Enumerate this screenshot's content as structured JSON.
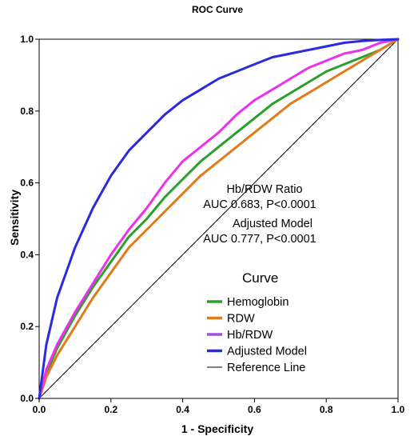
{
  "chart_data": {
    "type": "line",
    "title": "ROC Curve",
    "xlabel": "1 - Specificity",
    "ylabel": "Sensitivity",
    "xlim": [
      0.0,
      1.0
    ],
    "ylim": [
      0.0,
      1.0
    ],
    "xticks": [
      "0.0",
      "0.2",
      "0.4",
      "0.6",
      "0.8",
      "1.0"
    ],
    "yticks": [
      "0.0",
      "0.2",
      "0.4",
      "0.6",
      "0.8",
      "1.0"
    ],
    "grid": false,
    "legend": {
      "title": "Curve",
      "placement": "bottom-right",
      "entries": [
        "Hemoglobin",
        "RDW",
        "Hb/RDW",
        "Adjusted Model",
        "Reference Line"
      ]
    },
    "annotations": [
      {
        "lines": [
          "Hb/RDW Ratio",
          "AUC 0.683, P<0.0001"
        ]
      },
      {
        "lines": [
          "Adjusted Model",
          "AUC 0.777, P<0.0001"
        ]
      }
    ],
    "series": [
      {
        "name": "Hemoglobin",
        "color": "#2aa02a",
        "x": [
          0,
          0.02,
          0.05,
          0.1,
          0.15,
          0.2,
          0.25,
          0.3,
          0.35,
          0.4,
          0.45,
          0.5,
          0.55,
          0.6,
          0.65,
          0.7,
          0.75,
          0.8,
          0.85,
          0.9,
          0.95,
          1.0
        ],
        "y": [
          0,
          0.07,
          0.14,
          0.23,
          0.31,
          0.38,
          0.45,
          0.5,
          0.56,
          0.61,
          0.66,
          0.7,
          0.74,
          0.78,
          0.82,
          0.85,
          0.88,
          0.91,
          0.93,
          0.95,
          0.97,
          1.0
        ]
      },
      {
        "name": "RDW",
        "color": "#e07b1a",
        "x": [
          0,
          0.02,
          0.05,
          0.1,
          0.15,
          0.2,
          0.25,
          0.3,
          0.35,
          0.4,
          0.45,
          0.5,
          0.55,
          0.6,
          0.65,
          0.7,
          0.75,
          0.8,
          0.85,
          0.9,
          0.95,
          1.0
        ],
        "y": [
          0,
          0.06,
          0.12,
          0.2,
          0.28,
          0.35,
          0.42,
          0.47,
          0.52,
          0.57,
          0.62,
          0.66,
          0.7,
          0.74,
          0.78,
          0.82,
          0.85,
          0.88,
          0.91,
          0.94,
          0.97,
          1.0
        ]
      },
      {
        "name": "Hb/RDW",
        "color": "#ee30ee",
        "x": [
          0,
          0.02,
          0.05,
          0.1,
          0.15,
          0.2,
          0.25,
          0.3,
          0.35,
          0.4,
          0.45,
          0.5,
          0.55,
          0.6,
          0.65,
          0.7,
          0.75,
          0.8,
          0.85,
          0.9,
          0.95,
          1.0
        ],
        "y": [
          0,
          0.08,
          0.15,
          0.24,
          0.32,
          0.4,
          0.47,
          0.53,
          0.6,
          0.66,
          0.7,
          0.74,
          0.79,
          0.83,
          0.86,
          0.89,
          0.92,
          0.94,
          0.96,
          0.97,
          0.99,
          1.0
        ]
      },
      {
        "name": "Adjusted Model",
        "color": "#2a2ae0",
        "x": [
          0,
          0.02,
          0.05,
          0.1,
          0.15,
          0.2,
          0.25,
          0.3,
          0.35,
          0.4,
          0.45,
          0.5,
          0.55,
          0.6,
          0.65,
          0.7,
          0.75,
          0.8,
          0.85,
          0.9,
          0.95,
          1.0
        ],
        "y": [
          0,
          0.15,
          0.28,
          0.42,
          0.53,
          0.62,
          0.69,
          0.74,
          0.79,
          0.83,
          0.86,
          0.89,
          0.91,
          0.93,
          0.95,
          0.96,
          0.97,
          0.98,
          0.99,
          0.995,
          0.998,
          1.0
        ]
      },
      {
        "name": "Reference Line",
        "color": "#000000",
        "x": [
          0,
          1
        ],
        "y": [
          0,
          1
        ]
      }
    ]
  }
}
